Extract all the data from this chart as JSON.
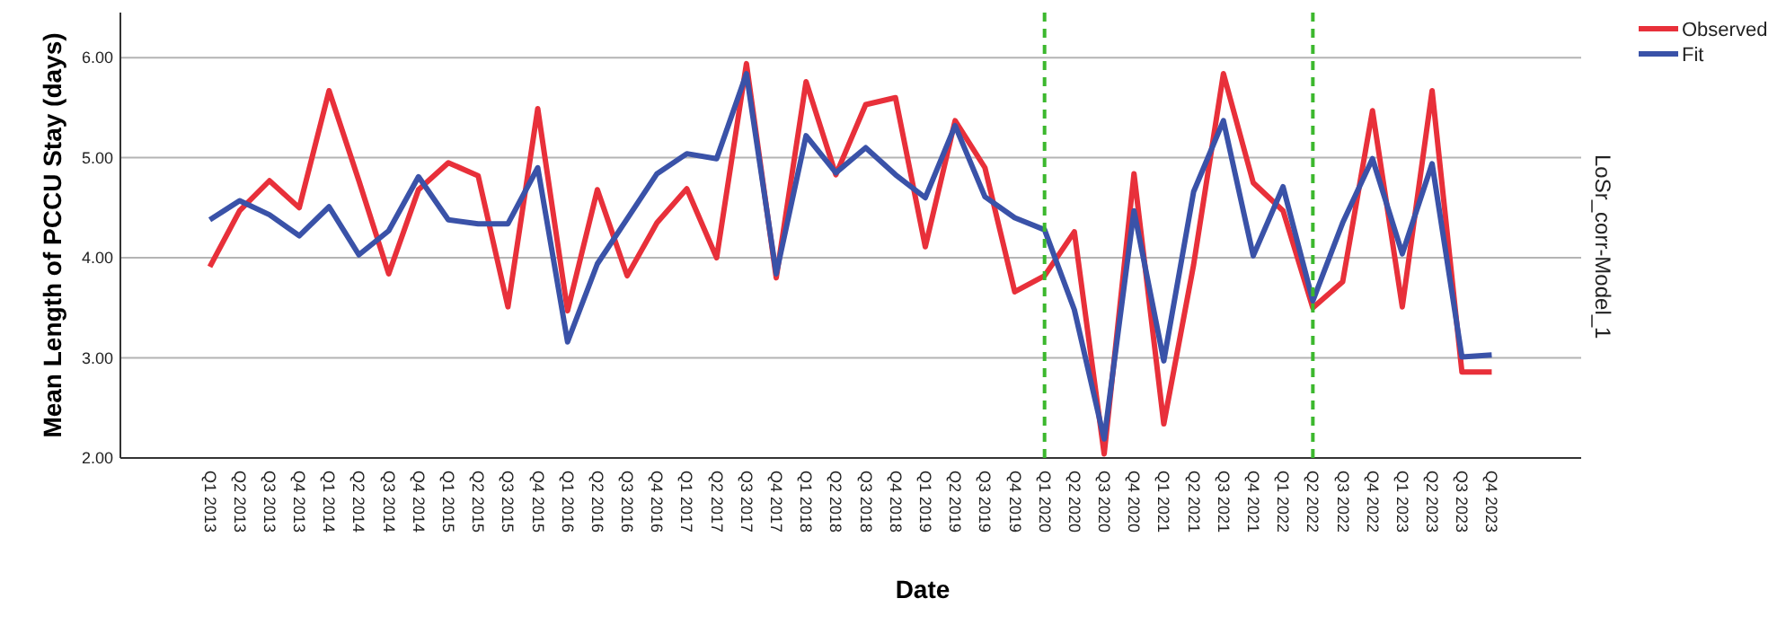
{
  "chart_data": {
    "type": "line",
    "xlabel": "Date",
    "ylabel": "Mean Length of PCCU Stay (days)",
    "annotations": [
      "LoSr_corr-Model_1"
    ],
    "categories": [
      "Q1 2013",
      "Q2 2013",
      "Q3 2013",
      "Q4 2013",
      "Q1 2014",
      "Q2 2014",
      "Q3 2014",
      "Q4 2014",
      "Q1 2015",
      "Q2 2015",
      "Q3 2015",
      "Q4 2015",
      "Q1 2016",
      "Q2 2016",
      "Q3 2016",
      "Q4 2016",
      "Q1 2017",
      "Q2 2017",
      "Q3 2017",
      "Q4 2017",
      "Q1 2018",
      "Q2 2018",
      "Q3 2018",
      "Q4 2018",
      "Q1 2019",
      "Q2 2019",
      "Q3 2019",
      "Q4 2019",
      "Q1 2020",
      "Q2 2020",
      "Q3 2020",
      "Q4 2020",
      "Q1 2021",
      "Q2 2021",
      "Q3 2021",
      "Q4 2021",
      "Q1 2022",
      "Q2 2022",
      "Q3 2022",
      "Q4 2022",
      "Q1 2023",
      "Q2 2023",
      "Q3 2023",
      "Q4 2023"
    ],
    "series": [
      {
        "name": "Observed",
        "color": "#e8303a",
        "values": [
          3.91,
          4.47,
          4.77,
          4.5,
          5.67,
          4.77,
          3.84,
          4.68,
          4.95,
          4.82,
          3.51,
          5.49,
          3.47,
          4.68,
          3.82,
          4.35,
          4.69,
          4.0,
          5.94,
          3.8,
          5.76,
          4.83,
          5.53,
          5.6,
          4.11,
          5.37,
          4.9,
          3.66,
          3.82,
          4.26,
          2.04,
          4.84,
          2.34,
          3.93,
          5.84,
          4.75,
          4.47,
          3.5,
          3.76,
          5.47,
          3.51,
          5.67,
          2.86,
          2.86
        ]
      },
      {
        "name": "Fit",
        "color": "#3a52a8",
        "values": [
          4.38,
          4.57,
          4.43,
          4.22,
          4.51,
          4.03,
          4.27,
          4.81,
          4.38,
          4.34,
          4.34,
          4.9,
          3.16,
          3.94,
          4.39,
          4.84,
          5.04,
          4.99,
          5.84,
          3.84,
          5.22,
          4.85,
          5.1,
          4.83,
          4.6,
          5.32,
          4.61,
          4.4,
          4.28,
          3.48,
          2.19,
          4.47,
          2.97,
          4.66,
          5.37,
          4.02,
          4.71,
          3.57,
          4.35,
          4.99,
          4.04,
          4.94,
          3.01,
          3.03
        ]
      }
    ],
    "ylim": [
      2,
      6.45
    ],
    "yticks": [
      {
        "value": 2,
        "label": "2.00"
      },
      {
        "value": 3,
        "label": "3.00"
      },
      {
        "value": 4,
        "label": "4.00"
      },
      {
        "value": 5,
        "label": "5.00"
      },
      {
        "value": 6,
        "label": "6.00"
      }
    ],
    "grid": "y",
    "legend": "top right",
    "marker": "none",
    "line_style": "solid",
    "ref_lines": [
      {
        "axis": "x",
        "value": "Q1 2020",
        "color": "#3cb82e",
        "line_style": "dashed"
      },
      {
        "axis": "x",
        "value": "Q2 2022",
        "color": "#3cb82e",
        "line_style": "dashed"
      }
    ]
  }
}
